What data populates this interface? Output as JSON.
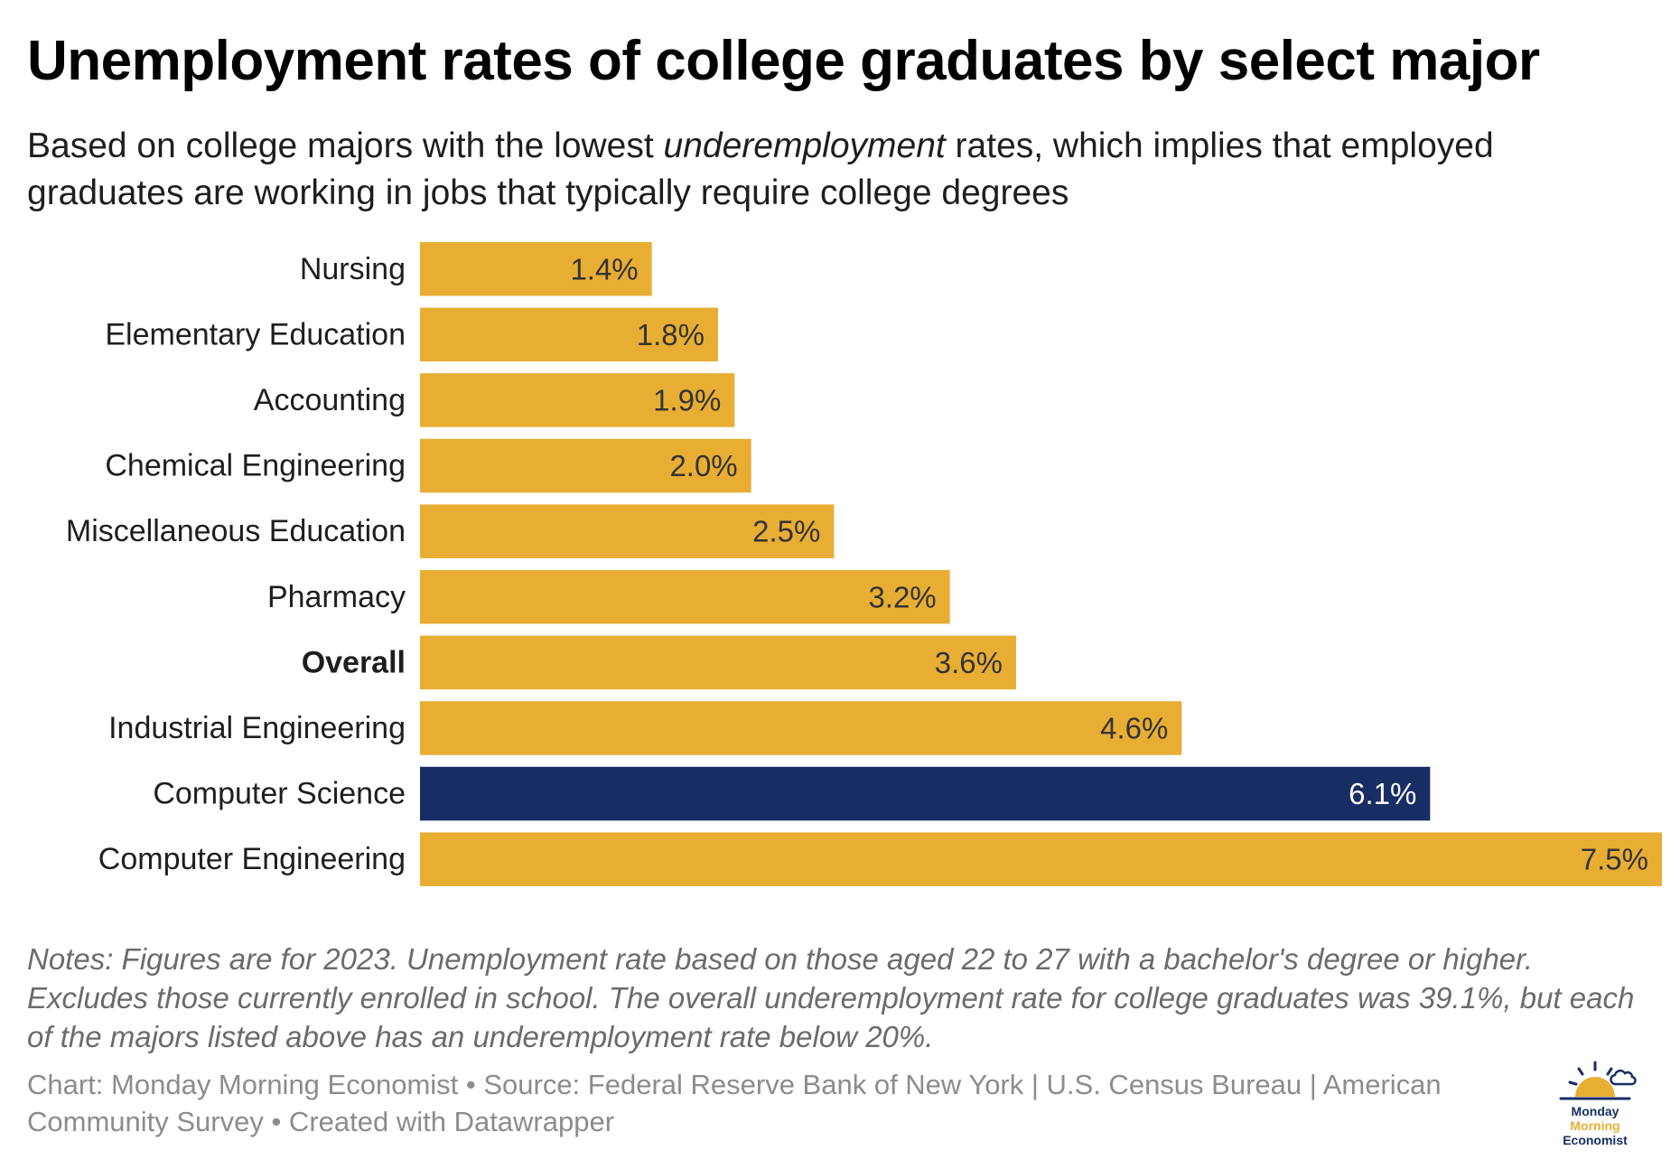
{
  "title": "Unemployment rates of college graduates by select major",
  "subtitle": {
    "before": "Based on college majors with the lowest ",
    "emphasis": "underemployment",
    "after": " rates, which implies that employed graduates are working in jobs that typically require college degrees"
  },
  "chart_data": {
    "type": "bar",
    "orientation": "horizontal",
    "categories": [
      "Nursing",
      "Elementary Education",
      "Accounting",
      "Chemical Engineering",
      "Miscellaneous Education",
      "Pharmacy",
      "Overall",
      "Industrial Engineering",
      "Computer Science",
      "Computer Engineering"
    ],
    "values": [
      1.4,
      1.8,
      1.9,
      2.0,
      2.5,
      3.2,
      3.6,
      4.6,
      6.1,
      7.5
    ],
    "labels": [
      "1.4%",
      "1.8%",
      "1.9%",
      "2.0%",
      "2.5%",
      "3.2%",
      "3.6%",
      "4.6%",
      "6.1%",
      "7.5%"
    ],
    "bold_category": "Overall",
    "highlight_category": "Computer Science",
    "xlim": [
      0,
      7.5
    ],
    "grid": false,
    "colors": {
      "default": "#e8ae33",
      "highlight": "#172d63",
      "label_dark": "#333333",
      "label_light": "#ffffff"
    }
  },
  "notes": "Notes: Figures are for 2023. Unemployment rate based on those aged 22 to 27 with a bachelor's degree or higher. Excludes those currently enrolled in school. The overall underemployment rate for college graduates was 39.1%, but each of the majors listed above has an underemployment rate below 20%.",
  "credits": "Chart: Monday Morning Economist • Source: Federal Reserve Bank of New York | U.S. Census Bureau | American Community Survey • Created with Datawrapper",
  "logo": {
    "line1": "Monday",
    "line2": "Morning",
    "line3": "Economist",
    "icon": "sunrise-cloud-icon",
    "colors": {
      "navy": "#172d63",
      "gold": "#e8ae33"
    }
  }
}
